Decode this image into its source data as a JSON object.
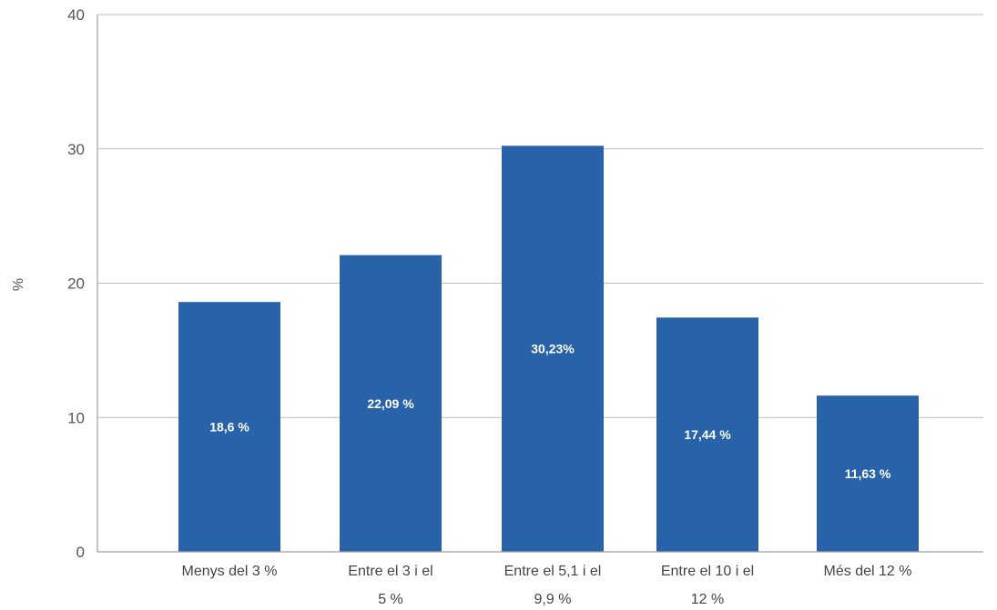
{
  "chart_data": {
    "type": "bar",
    "categories": [
      [
        "Menys del 3 %"
      ],
      [
        "Entre el 3 i el",
        "5 %"
      ],
      [
        "Entre el 5,1 i el",
        "9,9 %"
      ],
      [
        "Entre el 10 i el",
        "12 %"
      ],
      [
        "Més del 12 %"
      ]
    ],
    "values": [
      18.6,
      22.09,
      30.23,
      17.44,
      11.63
    ],
    "data_labels": [
      "18,6 %",
      "22,09 %",
      "30,23%",
      "17,44 %",
      "11,63 %"
    ],
    "ylabel": "%",
    "ylim": [
      0,
      40
    ],
    "yticks": [
      0,
      10,
      20,
      30,
      40
    ],
    "grid": true,
    "bar_color": "#2862a8"
  }
}
